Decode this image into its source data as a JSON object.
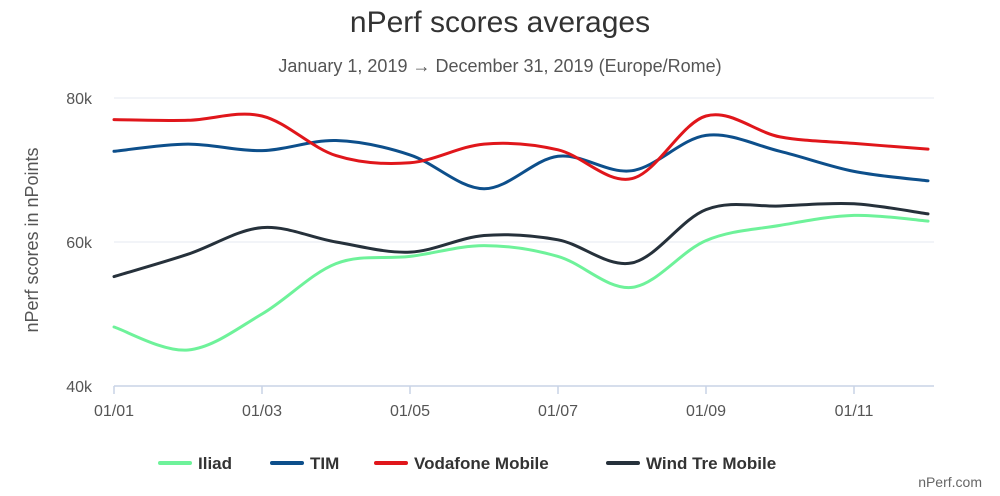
{
  "chart_data": {
    "type": "line",
    "title": "nPerf scores averages",
    "subtitle": "January 1, 2019 → December 31, 2019 (Europe/Rome)",
    "ylabel": "nPerf scores in nPoints",
    "xlabel": "",
    "ylim": [
      40000,
      80000
    ],
    "yticks": [
      40000,
      60000,
      80000
    ],
    "ytick_labels": [
      "40k",
      "60k",
      "80k"
    ],
    "x": [
      "2019-01",
      "2019-02",
      "2019-03",
      "2019-04",
      "2019-05",
      "2019-06",
      "2019-07",
      "2019-08",
      "2019-09",
      "2019-10",
      "2019-11",
      "2019-12"
    ],
    "xtick_labels": [
      {
        "x": "2019-01",
        "label": "01/01"
      },
      {
        "x": "2019-03",
        "label": "01/03"
      },
      {
        "x": "2019-05",
        "label": "01/05"
      },
      {
        "x": "2019-07",
        "label": "01/07"
      },
      {
        "x": "2019-09",
        "label": "01/09"
      },
      {
        "x": "2019-11",
        "label": "01/11"
      }
    ],
    "grid": true,
    "legend": "bottom",
    "series": [
      {
        "name": "Iliad",
        "color": "#6ef29a",
        "values": [
          48200,
          45000,
          50000,
          57000,
          58000,
          59500,
          58000,
          53700,
          60200,
          62300,
          63700,
          62900
        ]
      },
      {
        "name": "TIM",
        "color": "#0d4f8b",
        "values": [
          72600,
          73600,
          72700,
          74100,
          72100,
          67400,
          71900,
          69900,
          74800,
          72600,
          69800,
          68500
        ]
      },
      {
        "name": "Vodafone Mobile",
        "color": "#e0161b",
        "values": [
          77000,
          76900,
          77500,
          72000,
          71000,
          73600,
          72800,
          68800,
          77500,
          74600,
          73700,
          72900
        ]
      },
      {
        "name": "Wind Tre Mobile",
        "color": "#26313b",
        "values": [
          55200,
          58300,
          62000,
          60000,
          58600,
          60900,
          60300,
          57100,
          64500,
          65000,
          65300,
          63900
        ]
      }
    ]
  },
  "credit": "nPerf.com"
}
